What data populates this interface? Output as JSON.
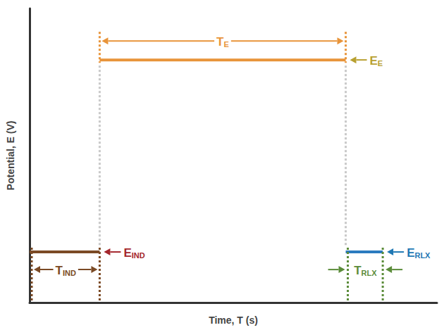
{
  "chart_data": {
    "type": "line",
    "x_label": "Time, T (s)",
    "y_label": "Potential, E (V)",
    "xlim": [
      0,
      10
    ],
    "ylim": [
      0,
      10
    ],
    "tick_labels": false,
    "grid": false,
    "series": [
      {
        "x": [
          0,
          1.72
        ],
        "values": [
          1.72,
          1.72
        ],
        "color": "#7b4a25",
        "level_label": {
          "text": "E",
          "sub": "IND"
        },
        "level_label_color": "#a4262c",
        "duration_label": {
          "text": "T",
          "sub": "IND"
        },
        "duration_color": "#7b4a25"
      },
      {
        "x": [
          1.72,
          7.76
        ],
        "values": [
          8.25,
          8.25
        ],
        "color": "#e8943a",
        "level_label": {
          "text": "E",
          "sub": "E"
        },
        "level_label_color": "#b8a030",
        "duration_label": {
          "text": "T",
          "sub": "E"
        },
        "duration_color": "#e8943a"
      },
      {
        "x": [
          7.76,
          8.67
        ],
        "values": [
          1.72,
          1.72
        ],
        "color": "#2b7bbf",
        "level_label": {
          "text": "E",
          "sub": "RLX"
        },
        "level_label_color": "#1f78b4",
        "duration_label": {
          "text": "T",
          "sub": "RLX"
        },
        "duration_color": "#5b8c3a"
      }
    ]
  }
}
